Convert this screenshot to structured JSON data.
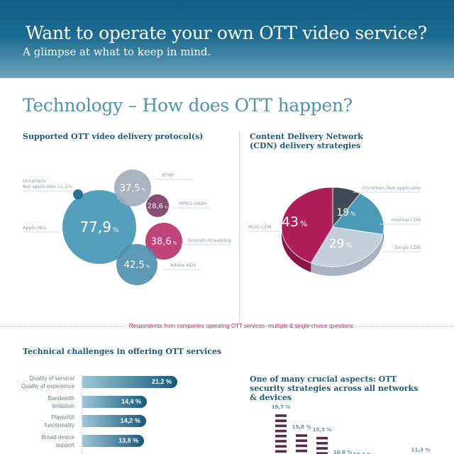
{
  "header": {
    "title": "Want to operate your own OTT video service?",
    "subtitle": "A glimpse at what to keep in mind."
  },
  "section_title": "Technology – How does OTT happen?",
  "respondents_note": "Respondents from companies operating OTT services -multiple & single choice questions",
  "colors": {
    "header": "#135f86",
    "accent": "#4e93b0",
    "magenta": "#b0245e",
    "dark_purple": "#5a2a4c"
  },
  "chart_data": [
    {
      "type": "bubble",
      "title": "Supported OTT video delivery protocol(s)",
      "unit": "%",
      "items": [
        {
          "name": "Apple HLS",
          "value": 77.9,
          "label": "77,9",
          "color": "#4b9ab8"
        },
        {
          "name": "RTMP",
          "value": 37.5,
          "label": "37,5",
          "color": "#9fadba"
        },
        {
          "name": "MPEG-DASH",
          "value": 28.6,
          "label": "28,6",
          "color": "#7a3a63"
        },
        {
          "name": "Smooth Streaming",
          "value": 38.6,
          "label": "38,6",
          "color": "#b8306a"
        },
        {
          "name": "Adobe HDS",
          "value": 42.5,
          "label": "42,5",
          "color": "#4b8fae"
        },
        {
          "name": "Uncertain/ Not applicable",
          "value": 11.1,
          "label": "11,1%",
          "color": "#1a6a8f"
        }
      ]
    },
    {
      "type": "pie",
      "title": "Content Delivery Network (CDN) delivery strategies",
      "unit": "%",
      "slices": [
        {
          "name": "Uncertain /Not applicable",
          "value": 9,
          "color": "#3f4a55"
        },
        {
          "name": "Internal CDN",
          "value": 19,
          "color": "#4b9ab8"
        },
        {
          "name": "Single CDN",
          "value": 29,
          "color": "#c3cfdb"
        },
        {
          "name": "Multi-CDN",
          "value": 43,
          "color": "#b01e5a"
        }
      ]
    },
    {
      "type": "bar",
      "orientation": "horizontal",
      "title": "Technical challenges in offering OTT services",
      "categories": [
        "Quality of service/ Quality of experience",
        "Bandwidth limitation",
        "Player/UI functionality",
        "Broad device support"
      ],
      "values": [
        21.2,
        14.4,
        14.2,
        13.8
      ],
      "labels": [
        "21,2 %",
        "14,4 %",
        "14,2 %",
        "13,8 %"
      ]
    },
    {
      "type": "bar",
      "title": "One of many crucial aspects: OTT security strategies across all networks & devices",
      "values": [
        19.7,
        15.8,
        15.3,
        10.8,
        10.4,
        11.3
      ],
      "labels": [
        "19,7 %",
        "15,8 %",
        "15,3 %",
        "10,8 %",
        "10,4 %",
        "11,3 %"
      ],
      "colors": [
        "#5a2a4c",
        "#5a2a4c",
        "#5a2a4c",
        "#5a2a4c",
        "#5a2a4c",
        "#b01e5a"
      ]
    }
  ]
}
